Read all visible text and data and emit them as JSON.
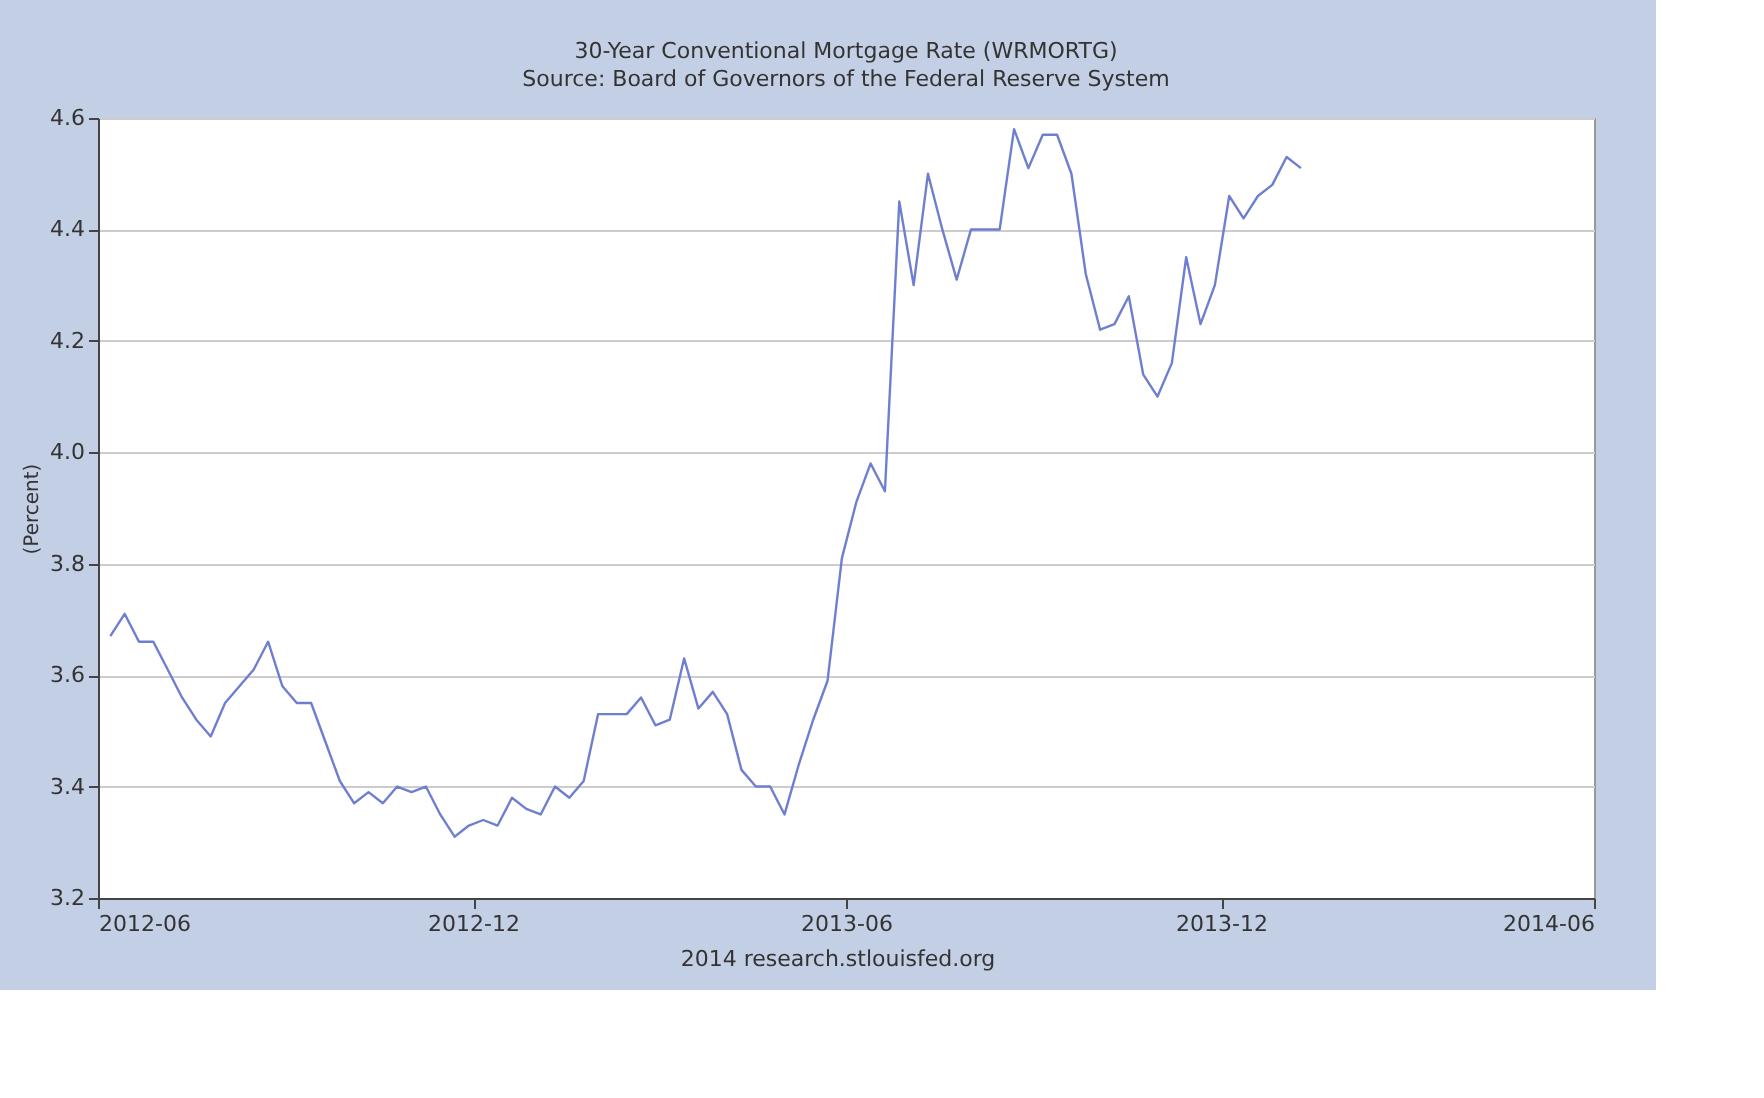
{
  "chart_data": {
    "type": "line",
    "title": "30-Year Conventional Mortgage Rate (WRMORTG)",
    "subtitle": "Source: Board of Governors of the Federal Reserve System",
    "ylabel": "(Percent)",
    "annotations": [
      "2014 research.stlouisfed.org"
    ],
    "x": [
      "2012-06-07",
      "2012-06-14",
      "2012-06-21",
      "2012-06-28",
      "2012-07-05",
      "2012-07-12",
      "2012-07-19",
      "2012-07-26",
      "2012-08-02",
      "2012-08-09",
      "2012-08-16",
      "2012-08-23",
      "2012-08-30",
      "2012-09-06",
      "2012-09-13",
      "2012-09-20",
      "2012-09-27",
      "2012-10-04",
      "2012-10-11",
      "2012-10-18",
      "2012-10-25",
      "2012-11-01",
      "2012-11-08",
      "2012-11-15",
      "2012-11-22",
      "2012-11-29",
      "2012-12-06",
      "2012-12-13",
      "2012-12-20",
      "2012-12-27",
      "2013-01-03",
      "2013-01-10",
      "2013-01-17",
      "2013-01-24",
      "2013-01-31",
      "2013-02-07",
      "2013-02-14",
      "2013-02-21",
      "2013-02-28",
      "2013-03-07",
      "2013-03-14",
      "2013-03-21",
      "2013-03-28",
      "2013-04-04",
      "2013-04-11",
      "2013-04-18",
      "2013-04-25",
      "2013-05-02",
      "2013-05-09",
      "2013-05-16",
      "2013-05-23",
      "2013-05-30",
      "2013-06-06",
      "2013-06-13",
      "2013-06-20",
      "2013-06-27",
      "2013-07-04",
      "2013-07-11",
      "2013-07-18",
      "2013-07-25",
      "2013-08-01",
      "2013-08-08",
      "2013-08-15",
      "2013-08-22",
      "2013-08-29",
      "2013-09-05",
      "2013-09-12",
      "2013-09-19",
      "2013-09-26",
      "2013-10-03",
      "2013-10-10",
      "2013-10-17",
      "2013-10-24",
      "2013-10-31",
      "2013-11-07",
      "2013-11-14",
      "2013-11-21",
      "2013-11-28",
      "2013-12-05",
      "2013-12-12",
      "2013-12-19",
      "2013-12-26",
      "2014-01-02",
      "2014-01-09"
    ],
    "series": [
      {
        "color": "#6f7fd0",
        "values": [
          3.67,
          3.71,
          3.66,
          3.66,
          3.61,
          3.56,
          3.52,
          3.49,
          3.55,
          3.58,
          3.61,
          3.66,
          3.58,
          3.55,
          3.55,
          3.48,
          3.41,
          3.37,
          3.39,
          3.37,
          3.4,
          3.39,
          3.4,
          3.35,
          3.31,
          3.33,
          3.34,
          3.33,
          3.38,
          3.36,
          3.35,
          3.4,
          3.38,
          3.41,
          3.53,
          3.53,
          3.53,
          3.56,
          3.51,
          3.52,
          3.63,
          3.54,
          3.57,
          3.53,
          3.43,
          3.4,
          3.4,
          3.35,
          3.44,
          3.52,
          3.59,
          3.81,
          3.91,
          3.98,
          3.93,
          4.45,
          4.3,
          4.5,
          4.4,
          4.31,
          4.4,
          4.4,
          4.4,
          4.58,
          4.51,
          4.57,
          4.57,
          4.5,
          4.32,
          4.22,
          4.23,
          4.28,
          4.14,
          4.1,
          4.16,
          4.35,
          4.23,
          4.3,
          4.46,
          4.42,
          4.46,
          4.48,
          4.53,
          4.51
        ]
      }
    ],
    "xlim": [
      "2012-06",
      "2014-06"
    ],
    "xticks": [
      "2012-06",
      "2012-12",
      "2013-06",
      "2013-12",
      "2014-06"
    ],
    "ylim": [
      3.2,
      4.6
    ],
    "yticks": [
      3.2,
      3.4,
      3.6,
      3.8,
      {
        "value": 4.0,
        "label": "4.0"
      },
      4.2,
      4.4,
      4.6
    ],
    "grid": "y",
    "marker": "none",
    "line_style": "solid"
  }
}
